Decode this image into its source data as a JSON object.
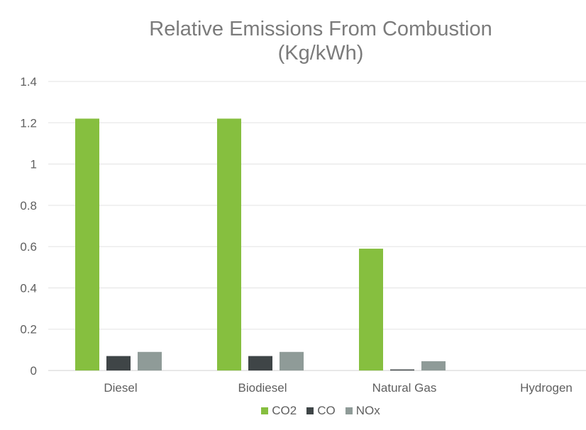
{
  "chart_data": {
    "type": "bar",
    "title_line1": "Relative Emissions From Combustion",
    "title_line2": "(Kg/kWh)",
    "xlabel": "",
    "ylabel": "",
    "categories": [
      "Diesel",
      "Biodiesel",
      "Natural Gas",
      "Hydrogen"
    ],
    "series": [
      {
        "name": "CO2",
        "color": "#86bf3f",
        "values": [
          1.22,
          1.22,
          0.59,
          0
        ]
      },
      {
        "name": "CO",
        "color": "#3f4547",
        "values": [
          0.07,
          0.07,
          0.005,
          0
        ]
      },
      {
        "name": "NOx",
        "color": "#8f9b98",
        "values": [
          0.09,
          0.09,
          0.045,
          0
        ]
      }
    ],
    "ylim": [
      0,
      1.4
    ],
    "yticks": [
      "0",
      "0.2",
      "0.4",
      "0.6",
      "0.8",
      "1",
      "1.2",
      "1.4"
    ],
    "ytick_values": [
      0,
      0.2,
      0.4,
      0.6,
      0.8,
      1,
      1.2,
      1.4
    ],
    "grid": true,
    "legend_position": "bottom"
  }
}
